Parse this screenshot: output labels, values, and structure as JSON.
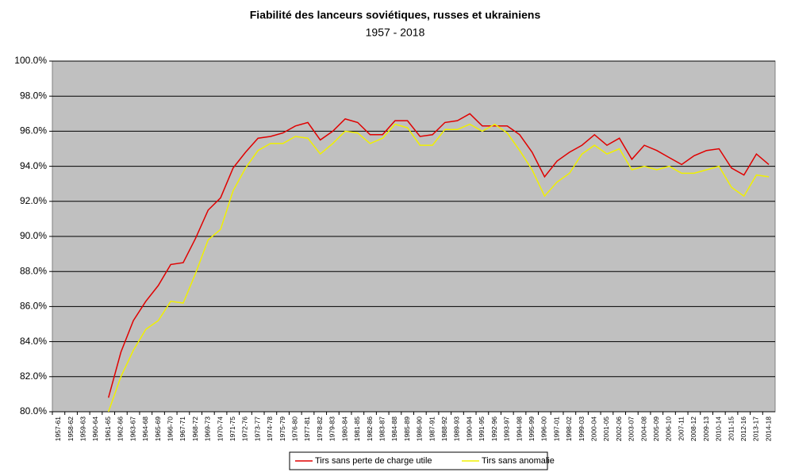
{
  "chart_data": {
    "type": "line",
    "title": "Fiabilité des lanceurs soviétiques, russes et ukrainiens",
    "subtitle": "1957 - 2018",
    "categories": [
      "1957-61",
      "1958-62",
      "1959-63",
      "1960-64",
      "1961-65",
      "1962-66",
      "1963-67",
      "1964-68",
      "1965-69",
      "1966-70",
      "1967-71",
      "1968-72",
      "1969-73",
      "1970-74",
      "1971-75",
      "1972-76",
      "1973-77",
      "1974-78",
      "1975-79",
      "1976-80",
      "1977-81",
      "1978-82",
      "1979-83",
      "1980-84",
      "1981-85",
      "1982-86",
      "1983-87",
      "1984-88",
      "1985-89",
      "1986-90",
      "1987-91",
      "1988-92",
      "1989-93",
      "1990-94",
      "1991-95",
      "1992-96",
      "1993-97",
      "1994-98",
      "1995-99",
      "1996-00",
      "1997-01",
      "1998-02",
      "1999-03",
      "2000-04",
      "2001-05",
      "2002-06",
      "2003-07",
      "2004-08",
      "2005-09",
      "2006-10",
      "2007-11",
      "2008-12",
      "2009-13",
      "2010-14",
      "2011-15",
      "2012-16",
      "2013-17",
      "2014-18"
    ],
    "series": [
      {
        "name": "Tirs sans perte de charge utile",
        "color": "#e00000",
        "values": [
          null,
          null,
          null,
          null,
          80.8,
          83.4,
          85.2,
          86.3,
          87.2,
          88.4,
          88.5,
          89.9,
          91.5,
          92.2,
          93.9,
          94.8,
          95.6,
          95.7,
          95.9,
          96.3,
          96.5,
          95.5,
          96.0,
          96.7,
          96.5,
          95.8,
          95.8,
          96.6,
          96.6,
          95.7,
          95.8,
          96.5,
          96.6,
          97.0,
          96.3,
          96.3,
          96.3,
          95.8,
          94.8,
          93.4,
          94.3,
          94.8,
          95.2,
          95.8,
          95.2,
          95.6,
          94.4,
          95.2,
          94.9,
          94.5,
          94.1,
          94.6,
          94.9,
          95.0,
          93.9,
          93.5,
          94.7,
          94.1
        ]
      },
      {
        "name": "Tirs sans anomalie",
        "color": "#f0f000",
        "values": [
          null,
          null,
          null,
          null,
          80.0,
          82.0,
          83.5,
          84.7,
          85.2,
          86.3,
          86.2,
          87.9,
          89.8,
          90.4,
          92.6,
          93.9,
          94.9,
          95.3,
          95.3,
          95.7,
          95.6,
          94.7,
          95.3,
          96.0,
          95.9,
          95.3,
          95.6,
          96.4,
          96.2,
          95.2,
          95.2,
          96.1,
          96.1,
          96.4,
          96.0,
          96.4,
          95.9,
          94.9,
          93.8,
          92.3,
          93.1,
          93.6,
          94.7,
          95.2,
          94.7,
          95.0,
          93.8,
          94.0,
          93.8,
          94.0,
          93.6,
          93.6,
          93.8,
          94.0,
          92.8,
          92.3,
          93.5,
          93.4
        ]
      }
    ],
    "ylim": [
      80,
      100
    ],
    "yticks": [
      {
        "value": 80,
        "label": "80.0%"
      },
      {
        "value": 82,
        "label": "82.0%"
      },
      {
        "value": 84,
        "label": "84.0%"
      },
      {
        "value": 86,
        "label": "86.0%"
      },
      {
        "value": 88,
        "label": "88.0%"
      },
      {
        "value": 90,
        "label": "90.0%"
      },
      {
        "value": 92,
        "label": "92.0%"
      },
      {
        "value": 94,
        "label": "94.0%"
      },
      {
        "value": 96,
        "label": "96.0%"
      },
      {
        "value": 98,
        "label": "98.0%"
      },
      {
        "value": 100,
        "label": "100.0%"
      }
    ],
    "grid": true
  }
}
